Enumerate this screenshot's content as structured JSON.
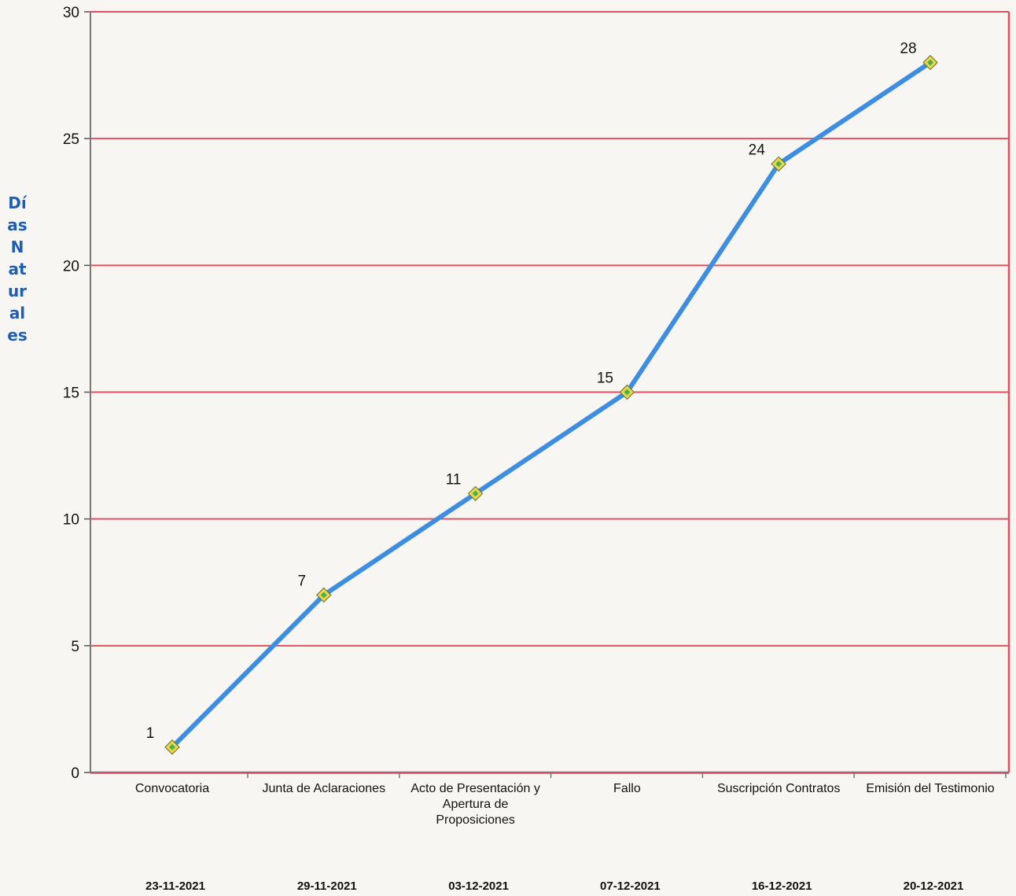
{
  "chart_data": {
    "type": "line",
    "title": "",
    "xlabel": "",
    "ylabel": "Días Naturales",
    "categories": [
      "Convocatoria",
      "Junta de Aclaraciones",
      "Acto de Presentación y Apertura de Proposiciones",
      "Fallo",
      "Suscripción Contratos",
      "Emisión del Testimonio"
    ],
    "dates": [
      "23-11-2021",
      "29-11-2021",
      "03-12-2021",
      "07-12-2021",
      "16-12-2021",
      "20-12-2021"
    ],
    "series": [
      {
        "values": [
          1,
          7,
          11,
          15,
          24,
          28
        ],
        "line_color": "#3d8ee0",
        "marker": "diamond",
        "marker_fill": "#e8d84a",
        "marker_center": "#4caf50"
      }
    ],
    "data_labels": [
      "1",
      "7",
      "11",
      "15",
      "24",
      "28"
    ],
    "ylim": [
      0,
      30
    ],
    "yticks": [
      0,
      5,
      10,
      15,
      20,
      25,
      30
    ],
    "grid": true,
    "grid_color": "#e0505f",
    "legend": "none"
  }
}
